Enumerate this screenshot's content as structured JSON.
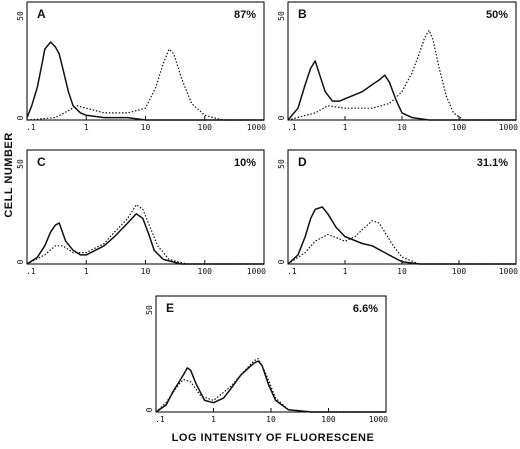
{
  "figure": {
    "y_axis_title": "CELL NUMBER",
    "x_axis_title": "LOG INTENSITY OF FLUORESCENE",
    "line_color": "#111111"
  },
  "chart_data": [
    {
      "type": "line",
      "panel": "A",
      "annotation": "87%",
      "xscale": "log",
      "xlim": [
        0.1,
        1000
      ],
      "ylim": [
        0,
        50
      ],
      "x_ticks": [
        ".1",
        "1",
        "10",
        "100",
        "1000"
      ],
      "y_ticks": [
        "0",
        "50"
      ],
      "series": [
        {
          "style": "solid",
          "points": [
            [
              0.1,
              1
            ],
            [
              0.12,
              6
            ],
            [
              0.15,
              14
            ],
            [
              0.18,
              24
            ],
            [
              0.2,
              30
            ],
            [
              0.25,
              33
            ],
            [
              0.3,
              31
            ],
            [
              0.35,
              28
            ],
            [
              0.4,
              22
            ],
            [
              0.5,
              12
            ],
            [
              0.6,
              6
            ],
            [
              0.8,
              3
            ],
            [
              1,
              2
            ],
            [
              2,
              1
            ],
            [
              5,
              1
            ],
            [
              10,
              0
            ],
            [
              1000,
              0
            ]
          ]
        },
        {
          "style": "dotted",
          "points": [
            [
              0.1,
              0
            ],
            [
              0.3,
              1
            ],
            [
              0.5,
              4
            ],
            [
              0.7,
              6
            ],
            [
              1,
              5
            ],
            [
              2,
              3
            ],
            [
              5,
              3
            ],
            [
              10,
              5
            ],
            [
              15,
              14
            ],
            [
              20,
              24
            ],
            [
              25,
              30
            ],
            [
              30,
              28
            ],
            [
              40,
              18
            ],
            [
              60,
              7
            ],
            [
              100,
              2
            ],
            [
              200,
              0
            ],
            [
              1000,
              0
            ]
          ]
        }
      ]
    },
    {
      "type": "line",
      "panel": "B",
      "annotation": "50%",
      "xscale": "log",
      "xlim": [
        0.1,
        1000
      ],
      "ylim": [
        0,
        50
      ],
      "x_ticks": [
        ".1",
        "1",
        "10",
        "100",
        "1000"
      ],
      "y_ticks": [
        "0",
        "50"
      ],
      "series": [
        {
          "style": "solid",
          "points": [
            [
              0.1,
              0
            ],
            [
              0.15,
              5
            ],
            [
              0.2,
              15
            ],
            [
              0.25,
              22
            ],
            [
              0.3,
              25
            ],
            [
              0.35,
              20
            ],
            [
              0.45,
              12
            ],
            [
              0.6,
              8
            ],
            [
              0.8,
              8
            ],
            [
              1,
              9
            ],
            [
              2,
              12
            ],
            [
              3,
              15
            ],
            [
              4,
              17
            ],
            [
              5,
              19
            ],
            [
              6,
              16
            ],
            [
              8,
              8
            ],
            [
              10,
              3
            ],
            [
              15,
              1
            ],
            [
              30,
              0
            ],
            [
              1000,
              0
            ]
          ]
        },
        {
          "style": "dotted",
          "points": [
            [
              0.1,
              0
            ],
            [
              0.3,
              3
            ],
            [
              0.5,
              6
            ],
            [
              1,
              5
            ],
            [
              3,
              5
            ],
            [
              6,
              7
            ],
            [
              10,
              12
            ],
            [
              15,
              20
            ],
            [
              20,
              28
            ],
            [
              25,
              35
            ],
            [
              30,
              38
            ],
            [
              35,
              34
            ],
            [
              45,
              22
            ],
            [
              60,
              10
            ],
            [
              80,
              3
            ],
            [
              120,
              0
            ],
            [
              1000,
              0
            ]
          ]
        }
      ]
    },
    {
      "type": "line",
      "panel": "C",
      "annotation": "10%",
      "xscale": "log",
      "xlim": [
        0.1,
        1000
      ],
      "ylim": [
        0,
        50
      ],
      "x_ticks": [
        ".1",
        "1",
        "10",
        "100",
        "1000"
      ],
      "y_ticks": [
        "0",
        "50"
      ],
      "series": [
        {
          "style": "solid",
          "points": [
            [
              0.1,
              0
            ],
            [
              0.15,
              3
            ],
            [
              0.2,
              8
            ],
            [
              0.25,
              14
            ],
            [
              0.3,
              17
            ],
            [
              0.35,
              18
            ],
            [
              0.45,
              10
            ],
            [
              0.6,
              6
            ],
            [
              0.8,
              4
            ],
            [
              1,
              4
            ],
            [
              2,
              8
            ],
            [
              3,
              12
            ],
            [
              5,
              18
            ],
            [
              7,
              22
            ],
            [
              9,
              20
            ],
            [
              11,
              14
            ],
            [
              14,
              6
            ],
            [
              20,
              2
            ],
            [
              40,
              0
            ],
            [
              1000,
              0
            ]
          ]
        },
        {
          "style": "dotted",
          "points": [
            [
              0.1,
              0
            ],
            [
              0.2,
              4
            ],
            [
              0.3,
              8
            ],
            [
              0.4,
              8
            ],
            [
              0.6,
              5
            ],
            [
              1,
              5
            ],
            [
              2,
              9
            ],
            [
              3,
              14
            ],
            [
              5,
              20
            ],
            [
              7,
              26
            ],
            [
              9,
              24
            ],
            [
              12,
              16
            ],
            [
              16,
              8
            ],
            [
              25,
              2
            ],
            [
              50,
              0
            ],
            [
              1000,
              0
            ]
          ]
        }
      ]
    },
    {
      "type": "line",
      "panel": "D",
      "annotation": "31.1%",
      "xscale": "log",
      "xlim": [
        0.1,
        1000
      ],
      "ylim": [
        0,
        50
      ],
      "x_ticks": [
        ".1",
        "1",
        "10",
        "100",
        "1000"
      ],
      "y_ticks": [
        "0",
        "50"
      ],
      "series": [
        {
          "style": "solid",
          "points": [
            [
              0.1,
              0
            ],
            [
              0.15,
              4
            ],
            [
              0.2,
              12
            ],
            [
              0.25,
              20
            ],
            [
              0.3,
              24
            ],
            [
              0.4,
              25
            ],
            [
              0.5,
              22
            ],
            [
              0.7,
              16
            ],
            [
              1,
              12
            ],
            [
              2,
              9
            ],
            [
              3,
              8
            ],
            [
              5,
              5
            ],
            [
              7,
              3
            ],
            [
              10,
              1
            ],
            [
              20,
              0
            ],
            [
              1000,
              0
            ]
          ]
        },
        {
          "style": "dotted",
          "points": [
            [
              0.1,
              0
            ],
            [
              0.2,
              5
            ],
            [
              0.3,
              10
            ],
            [
              0.5,
              13
            ],
            [
              0.8,
              11
            ],
            [
              1,
              10
            ],
            [
              1.5,
              12
            ],
            [
              2,
              15
            ],
            [
              3,
              19
            ],
            [
              4,
              18
            ],
            [
              5,
              14
            ],
            [
              7,
              8
            ],
            [
              10,
              3
            ],
            [
              20,
              0
            ],
            [
              1000,
              0
            ]
          ]
        }
      ]
    },
    {
      "type": "line",
      "panel": "E",
      "annotation": "6.6%",
      "xscale": "log",
      "xlim": [
        0.1,
        1000
      ],
      "ylim": [
        0,
        50
      ],
      "x_ticks": [
        ".1",
        "1",
        "10",
        "100",
        "1000"
      ],
      "y_ticks": [
        "0",
        "50"
      ],
      "series": [
        {
          "style": "solid",
          "points": [
            [
              0.1,
              0
            ],
            [
              0.15,
              3
            ],
            [
              0.2,
              9
            ],
            [
              0.3,
              16
            ],
            [
              0.35,
              19
            ],
            [
              0.4,
              18
            ],
            [
              0.5,
              12
            ],
            [
              0.7,
              5
            ],
            [
              1,
              4
            ],
            [
              1.5,
              6
            ],
            [
              2,
              10
            ],
            [
              3,
              16
            ],
            [
              5,
              21
            ],
            [
              6,
              22
            ],
            [
              7,
              20
            ],
            [
              9,
              12
            ],
            [
              12,
              5
            ],
            [
              20,
              1
            ],
            [
              50,
              0
            ],
            [
              1000,
              0
            ]
          ]
        },
        {
          "style": "dotted",
          "points": [
            [
              0.1,
              0
            ],
            [
              0.15,
              4
            ],
            [
              0.25,
              12
            ],
            [
              0.3,
              14
            ],
            [
              0.4,
              13
            ],
            [
              0.6,
              7
            ],
            [
              1,
              5
            ],
            [
              2,
              11
            ],
            [
              3,
              16
            ],
            [
              5,
              22
            ],
            [
              6,
              23
            ],
            [
              8,
              17
            ],
            [
              12,
              6
            ],
            [
              20,
              1
            ],
            [
              60,
              0
            ],
            [
              1000,
              0
            ]
          ]
        }
      ]
    }
  ]
}
